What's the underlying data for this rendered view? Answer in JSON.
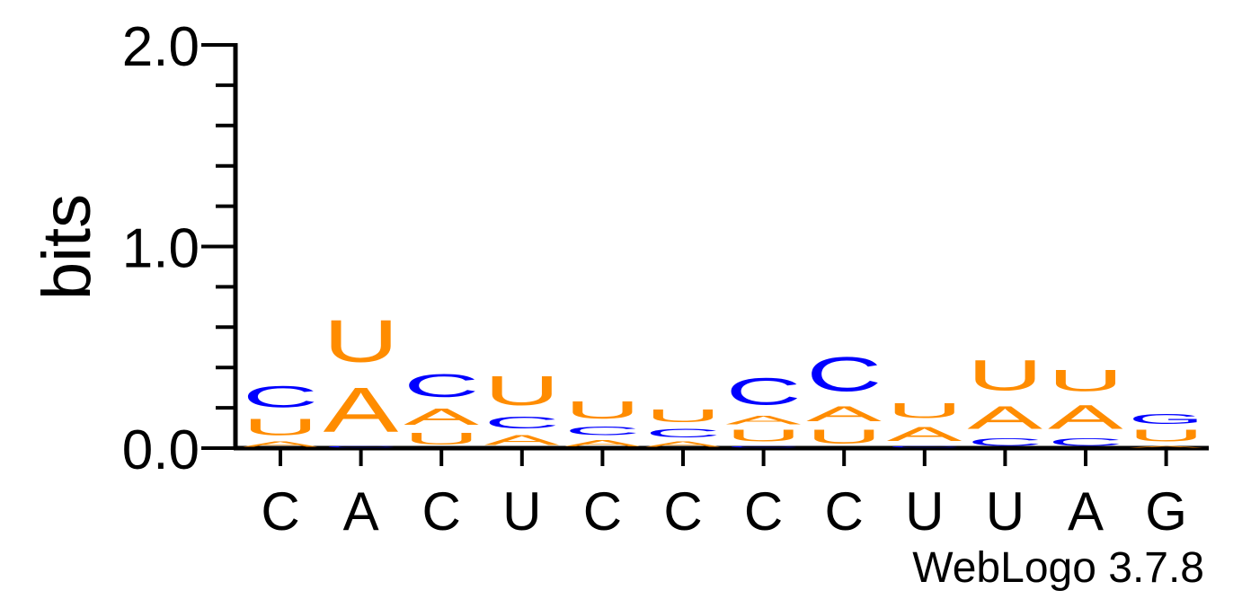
{
  "chart_data": {
    "type": "sequence-logo",
    "ylabel": "bits",
    "ylim": [
      0,
      2.0
    ],
    "y_major_ticks": [
      0.0,
      1.0,
      2.0
    ],
    "y_major_tick_labels": [
      "0.0",
      "1.0",
      "2.0"
    ],
    "y_minor_step": 0.2,
    "x_tick_labels": [
      "C",
      "A",
      "C",
      "U",
      "C",
      "C",
      "C",
      "C",
      "U",
      "U",
      "A",
      "G"
    ],
    "positions": [
      {
        "letters": [
          {
            "base": "A",
            "bits": 0.04
          },
          {
            "base": "U",
            "bits": 0.13
          },
          {
            "base": "C",
            "bits": 0.17
          }
        ]
      },
      {
        "letters": [
          {
            "base": "C",
            "bits": 0.015
          },
          {
            "base": "A",
            "bits": 0.35
          },
          {
            "base": "U",
            "bits": 0.33
          }
        ]
      },
      {
        "letters": [
          {
            "base": "U",
            "bits": 0.09
          },
          {
            "base": "A",
            "bits": 0.13
          },
          {
            "base": "C",
            "bits": 0.18
          }
        ]
      },
      {
        "letters": [
          {
            "base": "A",
            "bits": 0.08
          },
          {
            "base": "C",
            "bits": 0.09
          },
          {
            "base": "U",
            "bits": 0.23
          }
        ]
      },
      {
        "letters": [
          {
            "base": "A",
            "bits": 0.05
          },
          {
            "base": "C",
            "bits": 0.07
          },
          {
            "base": "U",
            "bits": 0.14
          }
        ]
      },
      {
        "letters": [
          {
            "base": "A",
            "bits": 0.04
          },
          {
            "base": "C",
            "bits": 0.07
          },
          {
            "base": "U",
            "bits": 0.1
          }
        ]
      },
      {
        "letters": [
          {
            "base": "C",
            "bits": 0.015
          },
          {
            "base": "U",
            "bits": 0.09
          },
          {
            "base": "A",
            "bits": 0.07
          },
          {
            "base": "C",
            "bits": 0.21
          }
        ]
      },
      {
        "letters": [
          {
            "base": "U",
            "bits": 0.11
          },
          {
            "base": "A",
            "bits": 0.12
          },
          {
            "base": "C",
            "bits": 0.27
          }
        ]
      },
      {
        "letters": [
          {
            "base": "C",
            "bits": 0.015
          },
          {
            "base": "A",
            "bits": 0.11
          },
          {
            "base": "U",
            "bits": 0.12
          }
        ]
      },
      {
        "letters": [
          {
            "base": "C",
            "bits": 0.06
          },
          {
            "base": "A",
            "bits": 0.18
          },
          {
            "base": "U",
            "bits": 0.24
          }
        ]
      },
      {
        "letters": [
          {
            "base": "C",
            "bits": 0.06
          },
          {
            "base": "A",
            "bits": 0.19
          },
          {
            "base": "U",
            "bits": 0.17
          }
        ]
      },
      {
        "letters": [
          {
            "base": "A",
            "bits": 0.015
          },
          {
            "base": "U",
            "bits": 0.09
          },
          {
            "base": "G",
            "bits": 0.08
          }
        ]
      }
    ],
    "colors": {
      "A": "#ff8c00",
      "U": "#ff8c00",
      "C": "#0000ff",
      "G": "#0000ff"
    },
    "footer": "WebLogo 3.7.8"
  }
}
